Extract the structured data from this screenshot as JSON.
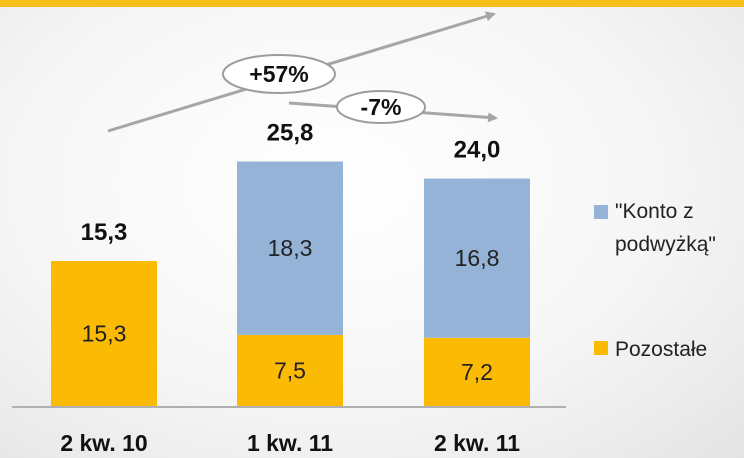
{
  "chart_data": {
    "type": "bar",
    "stacked": true,
    "categories": [
      "2 kw. 10",
      "1 kw. 11",
      "2 kw. 11"
    ],
    "series": [
      {
        "name": "Pozostałe",
        "values": [
          15.3,
          7.5,
          7.2
        ],
        "labels": [
          "15,3",
          "7,5",
          "7,2"
        ],
        "color": "#fbbb05"
      },
      {
        "name": "\"Konto z podwyżką\"",
        "values": [
          0,
          18.3,
          16.8
        ],
        "labels": [
          "",
          "18,3",
          "16,8"
        ],
        "color": "#94b3d7"
      }
    ],
    "totals": [
      15.3,
      25.8,
      24.0
    ],
    "total_labels": [
      "15,3",
      "25,8",
      "24,0"
    ],
    "annotations": [
      {
        "text": "+57%",
        "from": "2 kw. 10",
        "to": "2 kw. 11"
      },
      {
        "text": "-7%",
        "from": "1 kw. 11",
        "to": "2 kw. 11"
      }
    ],
    "legend": {
      "position": "right",
      "items": [
        {
          "lines": [
            "\"Konto z",
            "podwyżką\""
          ],
          "color": "#94b3d7"
        },
        {
          "lines": [
            "Pozostałe"
          ],
          "color": "#fbbb05"
        }
      ]
    },
    "ylim": [
      0,
      30
    ],
    "grid": false
  },
  "colors": {
    "accent_bar": "#f6bf1a",
    "arrow": "#a6a6a6"
  }
}
